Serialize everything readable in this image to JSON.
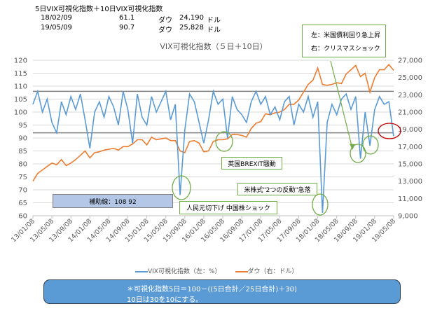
{
  "header": {
    "title": "5日VIX可視化指数＋10日VIX可視化指数",
    "rows": [
      {
        "date": "18/02/09",
        "value": "61.1",
        "label": "ダウ",
        "dow": "24,190",
        "unit": "ドル"
      },
      {
        "date": "19/05/09",
        "value": "90.7",
        "label": "ダウ",
        "dow": "25,828",
        "unit": "ドル"
      }
    ]
  },
  "annotations": {
    "helper_lines": "補助線：108  92",
    "china": "人民元切下げ  中国株ショック",
    "brexit": "英国BREXIT騒動",
    "us_drop": "米株式\"2つの反動\"急落",
    "top_left": "左：米国債利回り急上昇",
    "top_right": "右：クリスマスショック"
  },
  "note": {
    "line1": "＊可視化指数5日＝100－((5日合計／25日合計)＋30)",
    "line2": "10日は30を10にする。"
  },
  "colors": {
    "vix": "#5b9bd5",
    "dow": "#ed7d31",
    "helper": "#7f7f7f",
    "circle": "#70ad47",
    "red_circle": "#c00000"
  },
  "chart_data": {
    "type": "line",
    "title": "VIX可視化指数（５日＋10日）",
    "x_tick_labels": [
      "13/01/08",
      "13/05/08",
      "13/09/08",
      "14/01/08",
      "14/05/08",
      "14/09/08",
      "15/01/08",
      "15/05/08",
      "15/09/08",
      "16/01/08",
      "16/05/08",
      "16/09/08",
      "17/01/08",
      "17/05/08",
      "17/09/08",
      "18/01/08",
      "18/05/08",
      "18/09/08",
      "19/01/08",
      "19/05/08"
    ],
    "y_left": {
      "min": 60,
      "max": 120,
      "step": 5,
      "ticks": [
        "60",
        "65",
        "70",
        "75",
        "80",
        "85",
        "90",
        "95",
        "100",
        "105",
        "110",
        "115",
        "120"
      ]
    },
    "y_right": {
      "min": 9000,
      "max": 27000,
      "step": 2000,
      "ticks": [
        "9,000",
        "11,000",
        "13,000",
        "15,000",
        "17,000",
        "19,000",
        "21,000",
        "23,000",
        "25,000",
        "27,000"
      ]
    },
    "helper_lines": [
      108,
      92
    ],
    "x_start": "2013-01",
    "x_step": "monthly",
    "series": [
      {
        "name": "VIX可視化指数（左：%）",
        "axis": "left",
        "values": [
          103,
          108,
          100,
          105,
          96,
          92,
          104,
          99,
          106,
          101,
          107,
          97,
          86,
          100,
          104,
          98,
          106,
          102,
          95,
          108,
          101,
          88,
          107,
          98,
          95,
          106,
          100,
          104,
          108,
          97,
          103,
          68,
          93,
          107,
          104,
          96,
          88,
          97,
          108,
          103,
          105,
          90,
          106,
          101,
          99,
          96,
          104,
          108,
          103,
          106,
          99,
          102,
          97,
          104,
          106,
          95,
          103,
          100,
          106,
          98,
          104,
          61.1,
          96,
          103,
          99,
          105,
          107,
          101,
          106,
          82,
          100,
          87,
          101,
          106,
          103,
          104,
          90.7
        ]
      },
      {
        "name": "ダウ（右：ドル）",
        "axis": "right",
        "values": [
          13000,
          13900,
          14300,
          14700,
          15100,
          14900,
          15500,
          14800,
          15100,
          15500,
          16000,
          16500,
          15700,
          16300,
          16400,
          16600,
          16700,
          16800,
          16600,
          17000,
          17000,
          17300,
          17800,
          17800,
          17200,
          18100,
          17800,
          17900,
          18000,
          17700,
          17700,
          16500,
          16300,
          17600,
          17700,
          17400,
          16400,
          16500,
          17600,
          17800,
          17800,
          17900,
          18400,
          18400,
          18300,
          18100,
          19100,
          19700,
          19900,
          20800,
          20700,
          20900,
          21000,
          21300,
          21900,
          21900,
          22400,
          23300,
          24200,
          24700,
          26100,
          24190,
          24100,
          24200,
          24400,
          24300,
          25400,
          25900,
          26400,
          25100,
          25500,
          23300,
          25000,
          25900,
          25900,
          26500,
          25828
        ]
      }
    ],
    "legend": {
      "position": "bottom",
      "items": [
        "VIX可視化指数（左：%）",
        "ダウ（右：ドル）"
      ]
    }
  }
}
